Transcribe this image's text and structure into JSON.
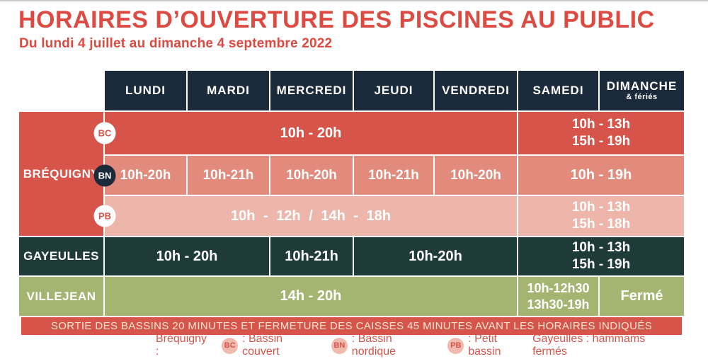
{
  "title": "HORAIRES D’OUVERTURE DES PISCINES AU PUBLIC",
  "subtitle": "Du lundi 4 juillet au dimanche 4 septembre 2022",
  "colors": {
    "title_red": "#dc4a41",
    "cell_red": "#d6544a",
    "cell_salmon": "#e28a7b",
    "cell_pink": "#eeb6aa",
    "header_navy": "#1c2b3b",
    "cell_teal": "#1e3b39",
    "cell_green": "#a4b572",
    "banner_text": "#f2e6d3"
  },
  "table": {
    "header": {
      "days": [
        "LUNDI",
        "MARDI",
        "MERCREDI",
        "JEUDI",
        "VENDREDI",
        "SAMEDI",
        "DIMANCHE"
      ],
      "dimanche_note": "& fériés"
    },
    "brequigny": {
      "label": "BRÉQUIGNY",
      "bc": {
        "badge": "BC",
        "weekdays": "10h - 20h",
        "weekend": [
          "10h - 13h",
          "15h - 19h"
        ]
      },
      "bn": {
        "badge": "BN",
        "days": [
          "10h-20h",
          "10h-21h",
          "10h-20h",
          "10h-21h",
          "10h-20h"
        ],
        "weekend": "10h - 19h"
      },
      "pb": {
        "badge": "PB",
        "weekdays": "10h - 12h / 14h - 18h",
        "weekend": [
          "10h - 13h",
          "15h - 18h"
        ]
      }
    },
    "gayeulles": {
      "label": "GAYEULLES",
      "lundi_mardi": "10h - 20h",
      "mercredi": "10h-21h",
      "jeudi_vendredi": "10h-20h",
      "weekend": [
        "10h - 13h",
        "15h - 19h"
      ]
    },
    "villejean": {
      "label": "VILLEJEAN",
      "lundi_vendredi": "14h - 20h",
      "samedi": [
        "10h-12h30",
        "13h30-19h"
      ],
      "dimanche": "Fermé"
    }
  },
  "banner": {
    "text": "SORTIE DES BASSINS 20 MINUTES ET FERMETURE DES CAISSES 45 MINUTES AVANT LES HORAIRES INDIQUÉS"
  },
  "legend": {
    "brequigny_label": "Bréquigny :",
    "items": [
      {
        "badge": "BC",
        "text": ": Bassin couvert"
      },
      {
        "badge": "BN",
        "text": ": Bassin nordique"
      },
      {
        "badge": "PB",
        "text": ": Petit bassin"
      }
    ],
    "gayeulles_note": "Gayeulles : hammams fermés"
  }
}
